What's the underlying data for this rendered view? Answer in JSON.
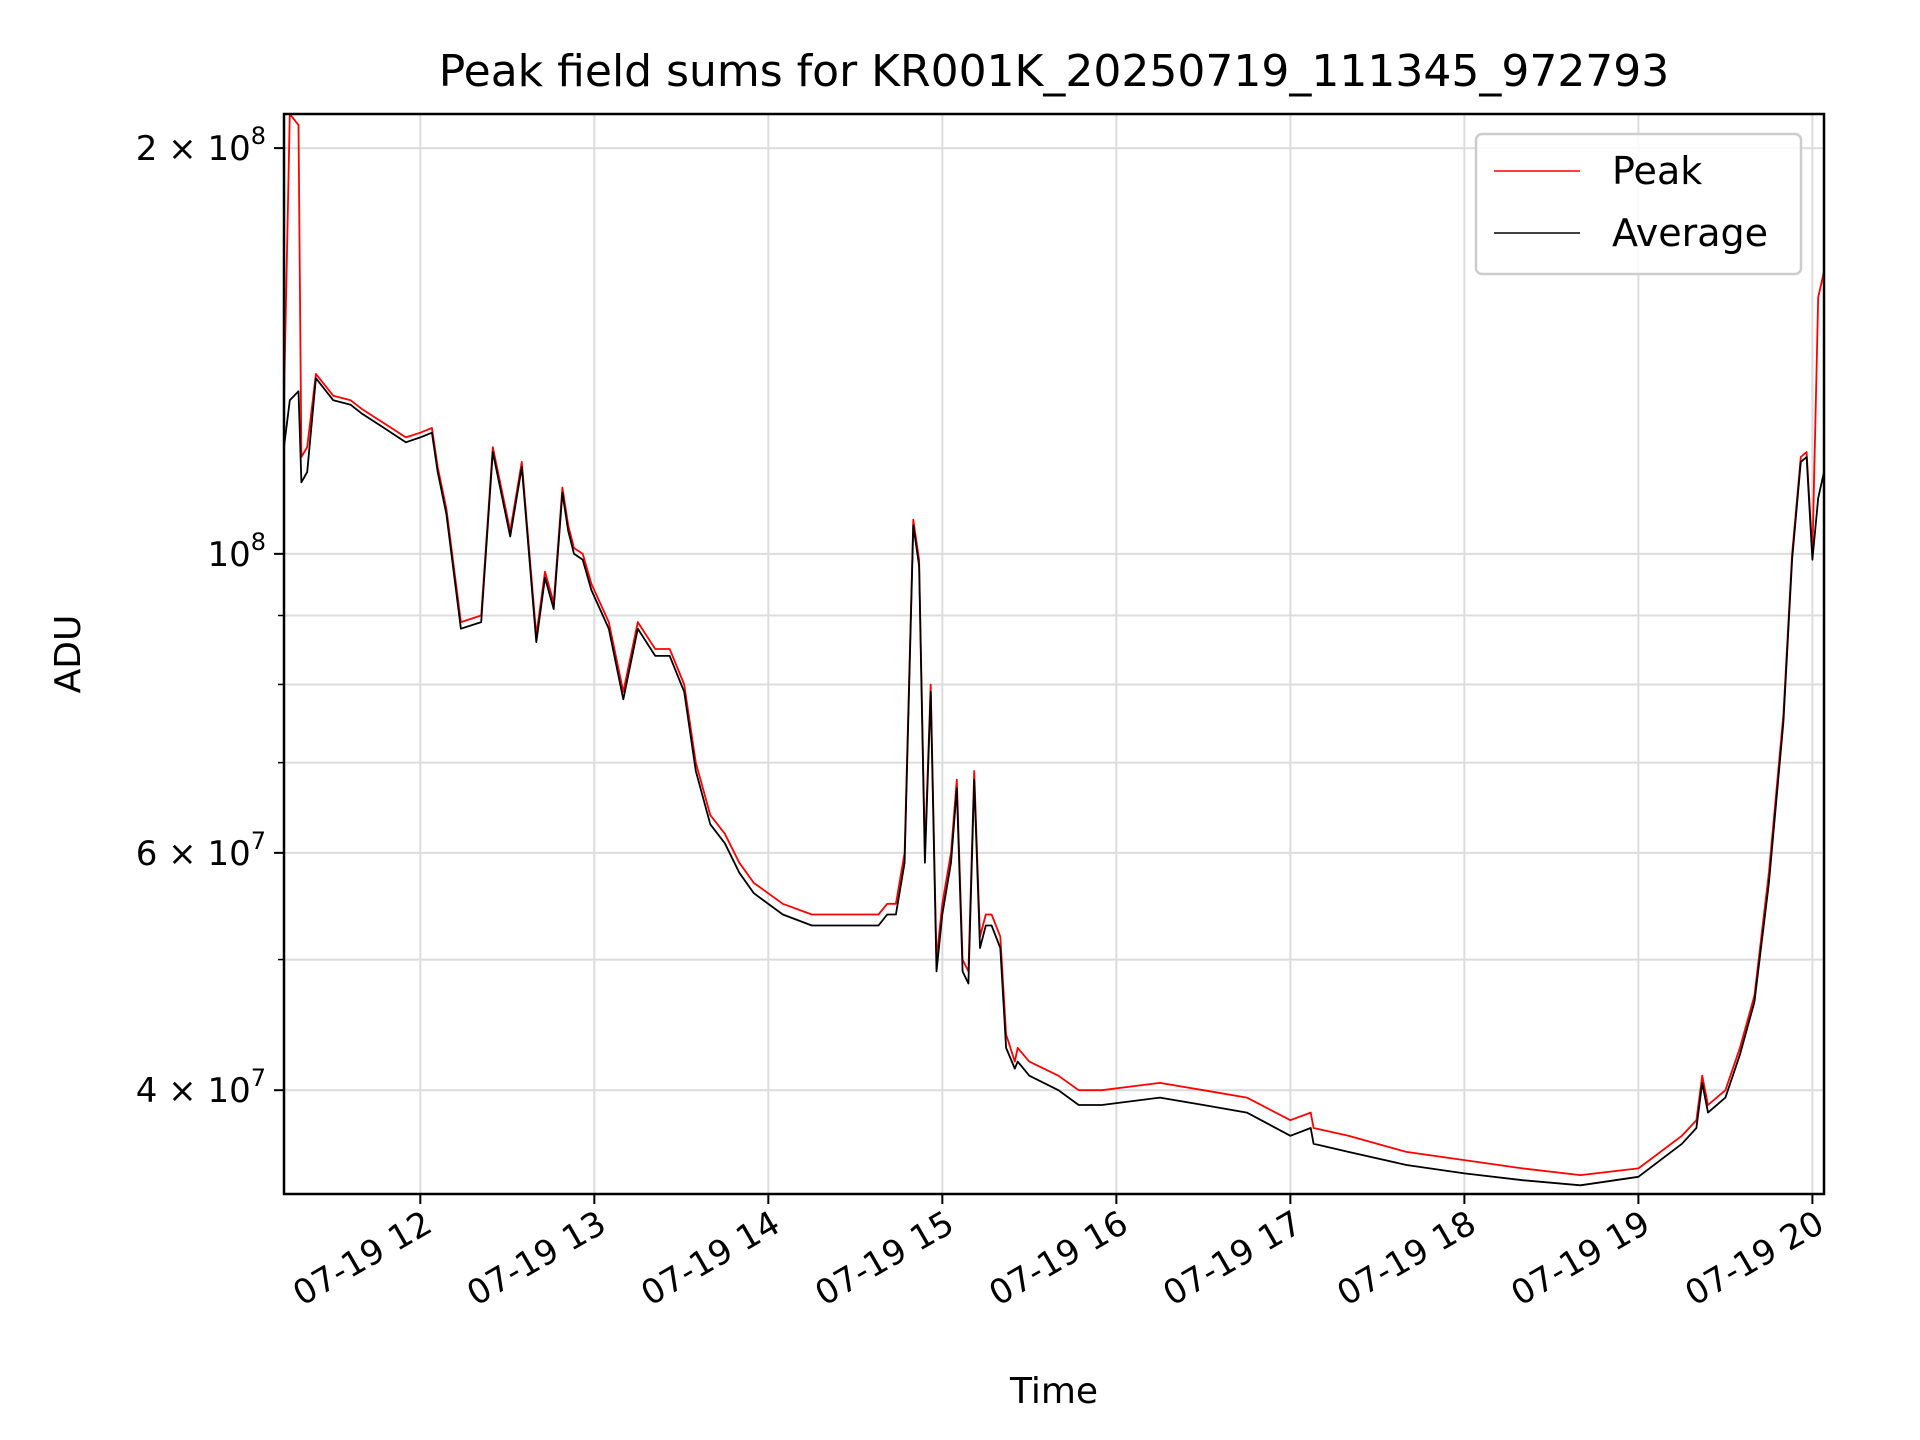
{
  "chart_data": {
    "type": "line",
    "title": "Peak field sums for KR001K_20250719_111345_972793",
    "xlabel": "Time",
    "ylabel": "ADU",
    "y_scale": "log",
    "grid": true,
    "legend_placement": "top-right",
    "xlim": [
      "2025-07-19 11:13",
      "2025-07-19 20:04"
    ],
    "ylim": [
      33500000,
      212000000
    ],
    "x_ticks": [
      {
        "value": "2025-07-19 12:00",
        "label": "07-19 12"
      },
      {
        "value": "2025-07-19 13:00",
        "label": "07-19 13"
      },
      {
        "value": "2025-07-19 14:00",
        "label": "07-19 14"
      },
      {
        "value": "2025-07-19 15:00",
        "label": "07-19 15"
      },
      {
        "value": "2025-07-19 16:00",
        "label": "07-19 16"
      },
      {
        "value": "2025-07-19 17:00",
        "label": "07-19 17"
      },
      {
        "value": "2025-07-19 18:00",
        "label": "07-19 18"
      },
      {
        "value": "2025-07-19 19:00",
        "label": "07-19 19"
      },
      {
        "value": "2025-07-19 20:00",
        "label": "07-19 20"
      }
    ],
    "y_ticks": [
      {
        "value": 200000000,
        "base": "2 × 10",
        "exp": "8"
      },
      {
        "value": 100000000,
        "base": "10",
        "exp": "8"
      },
      {
        "value": 60000000,
        "base": "6 × 10",
        "exp": "7"
      },
      {
        "value": 40000000,
        "base": "4 × 10",
        "exp": "7"
      }
    ],
    "y_minor_ticks": [
      90000000,
      80000000,
      70000000,
      50000000
    ],
    "x": [
      "2025-07-19 11:13",
      "2025-07-19 11:15",
      "2025-07-19 11:18",
      "2025-07-19 11:19",
      "2025-07-19 11:21",
      "2025-07-19 11:24",
      "2025-07-19 11:30",
      "2025-07-19 11:36",
      "2025-07-19 11:40",
      "2025-07-19 11:45",
      "2025-07-19 11:50",
      "2025-07-19 11:55",
      "2025-07-19 12:00",
      "2025-07-19 12:04",
      "2025-07-19 12:06",
      "2025-07-19 12:09",
      "2025-07-19 12:14",
      "2025-07-19 12:21",
      "2025-07-19 12:25",
      "2025-07-19 12:31",
      "2025-07-19 12:35",
      "2025-07-19 12:40",
      "2025-07-19 12:43",
      "2025-07-19 12:46",
      "2025-07-19 12:49",
      "2025-07-19 12:51",
      "2025-07-19 12:53",
      "2025-07-19 12:56",
      "2025-07-19 12:59",
      "2025-07-19 13:05",
      "2025-07-19 13:10",
      "2025-07-19 13:15",
      "2025-07-19 13:21",
      "2025-07-19 13:26",
      "2025-07-19 13:31",
      "2025-07-19 13:35",
      "2025-07-19 13:40",
      "2025-07-19 13:45",
      "2025-07-19 13:50",
      "2025-07-19 13:55",
      "2025-07-19 14:05",
      "2025-07-19 14:15",
      "2025-07-19 14:30",
      "2025-07-19 14:38",
      "2025-07-19 14:41",
      "2025-07-19 14:44",
      "2025-07-19 14:47",
      "2025-07-19 14:50",
      "2025-07-19 14:52",
      "2025-07-19 14:54",
      "2025-07-19 14:56",
      "2025-07-19 14:58",
      "2025-07-19 15:00",
      "2025-07-19 15:03",
      "2025-07-19 15:05",
      "2025-07-19 15:07",
      "2025-07-19 15:09",
      "2025-07-19 15:11",
      "2025-07-19 15:13",
      "2025-07-19 15:15",
      "2025-07-19 15:17",
      "2025-07-19 15:20",
      "2025-07-19 15:22",
      "2025-07-19 15:25",
      "2025-07-19 15:26",
      "2025-07-19 15:30",
      "2025-07-19 15:40",
      "2025-07-19 15:47",
      "2025-07-19 15:55",
      "2025-07-19 16:15",
      "2025-07-19 16:30",
      "2025-07-19 16:45",
      "2025-07-19 17:00",
      "2025-07-19 17:07",
      "2025-07-19 17:08",
      "2025-07-19 17:20",
      "2025-07-19 17:40",
      "2025-07-19 18:00",
      "2025-07-19 18:20",
      "2025-07-19 18:40",
      "2025-07-19 19:00",
      "2025-07-19 19:15",
      "2025-07-19 19:20",
      "2025-07-19 19:22",
      "2025-07-19 19:24",
      "2025-07-19 19:30",
      "2025-07-19 19:35",
      "2025-07-19 19:40",
      "2025-07-19 19:45",
      "2025-07-19 19:50",
      "2025-07-19 19:53",
      "2025-07-19 19:56",
      "2025-07-19 19:58",
      "2025-07-19 20:00",
      "2025-07-19 20:02",
      "2025-07-19 20:04"
    ],
    "series": [
      {
        "name": "Peak",
        "color": "#ff0000",
        "values": [
          130000000,
          212000000,
          208000000,
          118000000,
          120000000,
          136000000,
          131000000,
          130000000,
          128000000,
          126000000,
          124000000,
          122000000,
          123000000,
          124000000,
          116000000,
          108000000,
          89000000,
          90000000,
          120000000,
          104000000,
          117000000,
          87000000,
          97000000,
          92000000,
          112000000,
          105000000,
          101000000,
          100000000,
          95000000,
          89000000,
          79000000,
          89000000,
          85000000,
          85000000,
          80000000,
          70000000,
          64000000,
          62000000,
          59000000,
          57000000,
          55000000,
          54000000,
          54000000,
          54000000,
          55000000,
          55000000,
          60000000,
          106000000,
          99000000,
          60000000,
          80000000,
          50000000,
          55000000,
          60000000,
          68000000,
          50000000,
          49000000,
          69000000,
          52000000,
          54000000,
          54000000,
          52000000,
          44000000,
          42000000,
          43000000,
          42000000,
          41000000,
          40000000,
          40000000,
          40500000,
          40000000,
          39500000,
          38000000,
          38500000,
          37500000,
          37000000,
          36000000,
          35500000,
          35000000,
          34600000,
          35000000,
          37000000,
          38000000,
          41000000,
          39000000,
          40000000,
          43000000,
          47000000,
          58000000,
          76000000,
          100000000,
          118000000,
          119000000,
          100000000,
          155000000,
          162000000
        ]
      },
      {
        "name": "Average",
        "color": "#000000",
        "values": [
          120000000,
          130000000,
          132000000,
          113000000,
          115000000,
          135000000,
          130000000,
          129000000,
          127000000,
          125000000,
          123000000,
          121000000,
          122000000,
          123000000,
          115000000,
          107000000,
          88000000,
          89000000,
          119000000,
          103000000,
          116000000,
          86000000,
          96000000,
          91000000,
          111000000,
          104000000,
          100000000,
          99000000,
          94000000,
          88000000,
          78000000,
          88000000,
          84000000,
          84000000,
          79000000,
          69000000,
          63000000,
          61000000,
          58000000,
          56000000,
          54000000,
          53000000,
          53000000,
          53000000,
          54000000,
          54000000,
          59000000,
          105000000,
          98000000,
          59000000,
          79000000,
          49000000,
          54000000,
          59000000,
          67000000,
          49000000,
          48000000,
          68000000,
          51000000,
          53000000,
          53000000,
          51000000,
          43000000,
          41500000,
          42000000,
          41000000,
          40000000,
          39000000,
          39000000,
          39500000,
          39000000,
          38500000,
          37000000,
          37500000,
          36500000,
          36000000,
          35200000,
          34700000,
          34300000,
          34000000,
          34500000,
          36500000,
          37500000,
          40500000,
          38500000,
          39500000,
          42500000,
          46500000,
          57000000,
          75000000,
          99000000,
          117000000,
          118000000,
          99000000,
          110000000,
          115000000
        ]
      }
    ]
  }
}
